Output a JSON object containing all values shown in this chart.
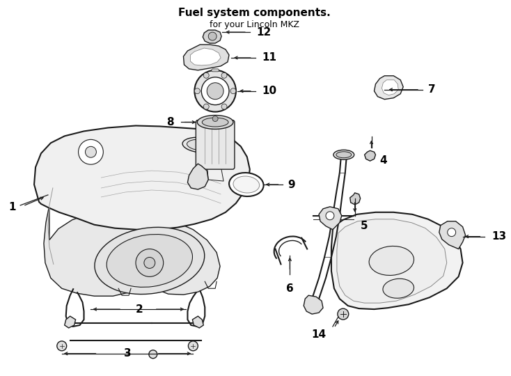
{
  "title": "Fuel system components.",
  "subtitle": "for your Lincoln MKZ",
  "bg_color": "#ffffff",
  "line_color": "#1a1a1a",
  "text_color": "#000000",
  "fig_width": 7.34,
  "fig_height": 5.4,
  "dpi": 100,
  "label_fontsize": 11,
  "label_fontweight": "bold",
  "title_fontsize": 11,
  "subtitle_fontsize": 9,
  "arrow_lw": 0.9,
  "arrow_ms": 7,
  "part_lw": 1.0,
  "part_lw_thick": 1.5
}
